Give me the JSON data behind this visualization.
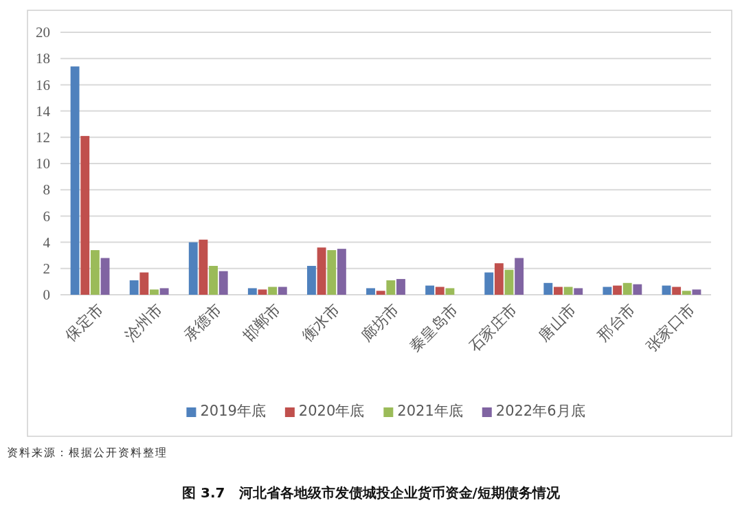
{
  "chart_data": {
    "type": "bar",
    "title": "图 3.7　河北省各地级市发债城投企业货币资金/短期债务情况",
    "categories": [
      "保定市",
      "沧州市",
      "承德市",
      "邯郸市",
      "衡水市",
      "廊坊市",
      "秦皇岛市",
      "石家庄市",
      "唐山市",
      "邢台市",
      "张家口市"
    ],
    "series": [
      {
        "name": "2019年底",
        "color": "#4f81bd",
        "values": [
          17.4,
          1.1,
          4.0,
          0.5,
          2.2,
          0.5,
          0.7,
          1.7,
          0.9,
          0.6,
          0.7
        ]
      },
      {
        "name": "2020年底",
        "color": "#c0504d",
        "values": [
          12.1,
          1.7,
          4.2,
          0.4,
          3.6,
          0.3,
          0.6,
          2.4,
          0.6,
          0.7,
          0.6
        ]
      },
      {
        "name": "2021年底",
        "color": "#9bbb59",
        "values": [
          3.4,
          0.4,
          2.2,
          0.6,
          3.4,
          1.1,
          0.5,
          1.9,
          0.6,
          0.9,
          0.3
        ]
      },
      {
        "name": "2022年6月底",
        "color": "#8064a2",
        "values": [
          2.8,
          0.5,
          1.8,
          0.6,
          3.5,
          1.2,
          null,
          2.8,
          0.5,
          0.8,
          0.4
        ]
      }
    ],
    "ylim": [
      0,
      20
    ],
    "yticks": [
      0,
      2,
      4,
      6,
      8,
      10,
      12,
      14,
      16,
      18,
      20
    ],
    "grid": "y",
    "legend": "bottom",
    "annotations": [
      "资料来源：根据公开资料整理"
    ]
  }
}
